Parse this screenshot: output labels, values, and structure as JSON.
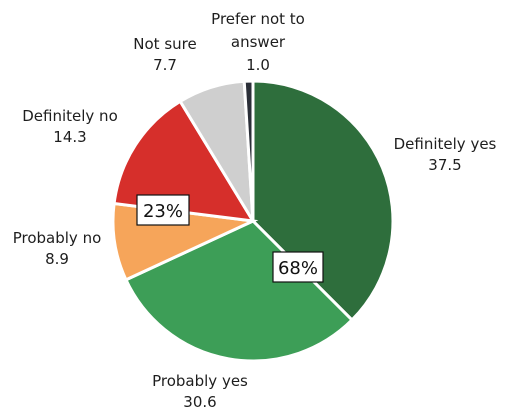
{
  "chart_data": {
    "type": "pie",
    "title": "",
    "slices": [
      {
        "label": "Definitely yes",
        "value": 37.5,
        "value_text": "37.5",
        "color": "#2e6e3c"
      },
      {
        "label": "Probably yes",
        "value": 30.6,
        "value_text": "30.6",
        "color": "#3d9e57"
      },
      {
        "label": "Probably no",
        "value": 8.9,
        "value_text": "8.9",
        "color": "#f6a55a"
      },
      {
        "label": "Definitely no",
        "value": 14.3,
        "value_text": "14.3",
        "color": "#d62f2b"
      },
      {
        "label": "Not sure",
        "value": 7.7,
        "value_text": "7.7",
        "color": "#cfcfcf"
      },
      {
        "label": "Prefer not to answer",
        "value": 1.0,
        "value_text": "1.0",
        "color": "#2b2f38"
      }
    ],
    "group_labels": [
      {
        "text": "68%",
        "of": [
          "Definitely yes",
          "Probably yes"
        ]
      },
      {
        "text": "23%",
        "of": [
          "Probably no",
          "Definitely no"
        ]
      }
    ]
  }
}
